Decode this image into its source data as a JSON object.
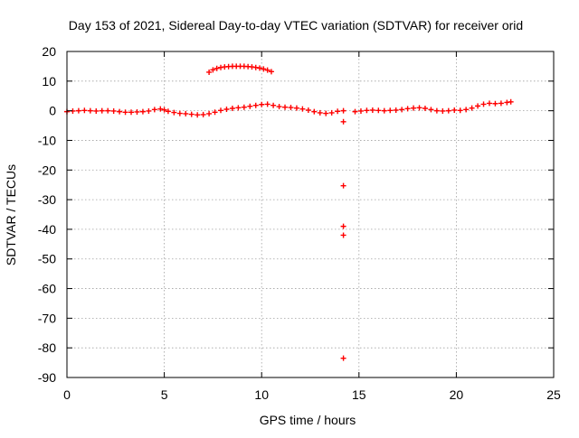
{
  "chart_data": {
    "type": "scatter",
    "title": "Day 153 of 2021, Sidereal Day-to-day VTEC variation (SDTVAR) for receiver orid",
    "xlabel": "GPS time / hours",
    "ylabel": "SDTVAR / TECUs",
    "xlim": [
      0,
      25
    ],
    "ylim": [
      -90,
      20
    ],
    "xticks": [
      0,
      5,
      10,
      15,
      20,
      25
    ],
    "yticks": [
      20,
      10,
      0,
      -10,
      -20,
      -30,
      -40,
      -50,
      -60,
      -70,
      -80,
      -90
    ],
    "grid": true,
    "marker": "+",
    "colors": {
      "series": "#ff0000",
      "grid": "#a0a0a0",
      "axis": "#000000"
    },
    "series": [
      {
        "points": [
          [
            0.0,
            -0.3
          ],
          [
            0.3,
            -0.1
          ],
          [
            0.6,
            0.0
          ],
          [
            0.9,
            0.1
          ],
          [
            1.2,
            0.0
          ],
          [
            1.5,
            -0.1
          ],
          [
            1.8,
            0.0
          ],
          [
            2.1,
            0.0
          ],
          [
            2.4,
            -0.1
          ],
          [
            2.7,
            -0.3
          ],
          [
            3.0,
            -0.5
          ],
          [
            3.3,
            -0.5
          ],
          [
            3.6,
            -0.4
          ],
          [
            3.9,
            -0.3
          ],
          [
            4.2,
            -0.1
          ],
          [
            4.5,
            0.4
          ],
          [
            4.8,
            0.6
          ],
          [
            5.0,
            0.3
          ],
          [
            5.2,
            -0.2
          ],
          [
            5.5,
            -0.6
          ],
          [
            5.8,
            -0.9
          ],
          [
            6.1,
            -1.0
          ],
          [
            6.4,
            -1.2
          ],
          [
            6.7,
            -1.4
          ],
          [
            7.0,
            -1.3
          ],
          [
            7.3,
            -1.0
          ],
          [
            7.6,
            -0.5
          ],
          [
            7.9,
            0.1
          ],
          [
            8.2,
            0.5
          ],
          [
            8.5,
            0.8
          ],
          [
            8.8,
            1.0
          ],
          [
            9.1,
            1.2
          ],
          [
            9.4,
            1.5
          ],
          [
            9.7,
            1.8
          ],
          [
            10.0,
            2.1
          ],
          [
            10.3,
            2.2
          ],
          [
            10.6,
            1.8
          ],
          [
            10.9,
            1.4
          ],
          [
            11.2,
            1.2
          ],
          [
            11.5,
            1.1
          ],
          [
            11.8,
            0.9
          ],
          [
            12.1,
            0.6
          ],
          [
            12.4,
            0.2
          ],
          [
            12.7,
            -0.3
          ],
          [
            13.0,
            -0.7
          ],
          [
            13.3,
            -0.9
          ],
          [
            13.6,
            -0.7
          ],
          [
            13.9,
            -0.2
          ],
          [
            14.2,
            0.0
          ],
          [
            7.3,
            13.0
          ],
          [
            7.5,
            13.8
          ],
          [
            7.7,
            14.3
          ],
          [
            7.9,
            14.6
          ],
          [
            8.1,
            14.8
          ],
          [
            8.3,
            14.9
          ],
          [
            8.5,
            15.0
          ],
          [
            8.7,
            15.0
          ],
          [
            8.9,
            15.0
          ],
          [
            9.1,
            15.0
          ],
          [
            9.3,
            14.9
          ],
          [
            9.5,
            14.8
          ],
          [
            9.7,
            14.6
          ],
          [
            9.9,
            14.4
          ],
          [
            10.1,
            14.1
          ],
          [
            10.3,
            13.7
          ],
          [
            10.5,
            13.2
          ],
          [
            14.2,
            -3.7
          ],
          [
            14.2,
            -25.3
          ],
          [
            14.2,
            -39.0
          ],
          [
            14.2,
            -42.0
          ],
          [
            14.2,
            -83.5
          ],
          [
            14.8,
            -0.3
          ],
          [
            15.1,
            -0.1
          ],
          [
            15.4,
            0.1
          ],
          [
            15.7,
            0.2
          ],
          [
            16.0,
            0.1
          ],
          [
            16.3,
            0.0
          ],
          [
            16.6,
            0.1
          ],
          [
            16.9,
            0.2
          ],
          [
            17.2,
            0.4
          ],
          [
            17.5,
            0.7
          ],
          [
            17.8,
            0.9
          ],
          [
            18.1,
            1.0
          ],
          [
            18.4,
            0.8
          ],
          [
            18.7,
            0.4
          ],
          [
            19.0,
            0.0
          ],
          [
            19.3,
            -0.1
          ],
          [
            19.6,
            0.0
          ],
          [
            19.9,
            0.2
          ],
          [
            20.2,
            0.1
          ],
          [
            20.5,
            0.4
          ],
          [
            20.8,
            0.9
          ],
          [
            21.1,
            1.6
          ],
          [
            21.4,
            2.2
          ],
          [
            21.7,
            2.5
          ],
          [
            22.0,
            2.4
          ],
          [
            22.3,
            2.5
          ],
          [
            22.6,
            2.8
          ],
          [
            22.8,
            3.0
          ]
        ]
      }
    ]
  }
}
